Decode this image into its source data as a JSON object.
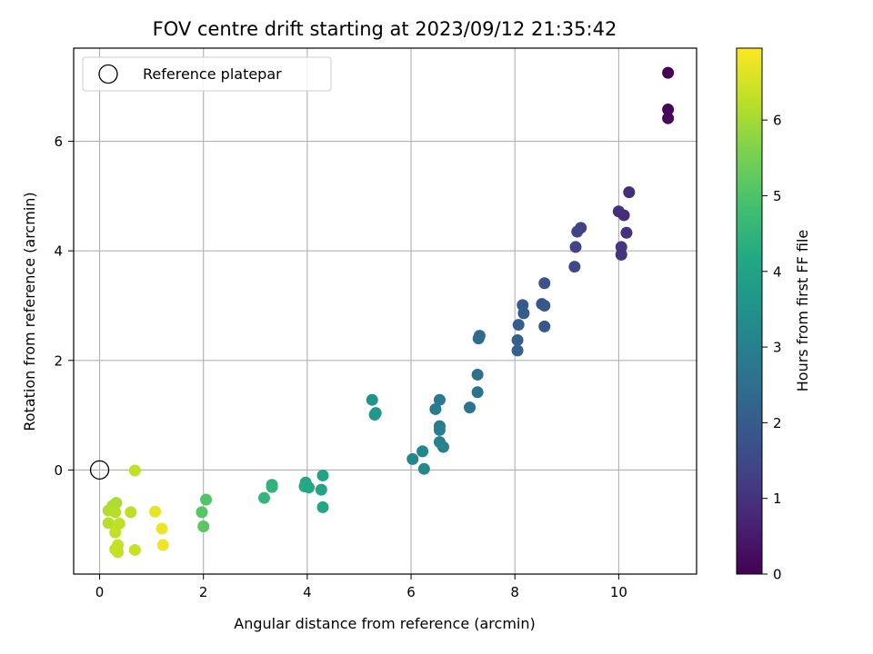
{
  "chart_data": {
    "type": "scatter",
    "title": "FOV centre drift starting at 2023/09/12 21:35:42",
    "xlabel": "Angular distance from reference (arcmin)",
    "ylabel": "Rotation from reference (arcmin)",
    "xlim": [
      -0.5,
      11.5
    ],
    "ylim": [
      -1.9,
      7.7
    ],
    "xticks": [
      0,
      2,
      4,
      6,
      8,
      10
    ],
    "yticks": [
      0,
      2,
      4,
      6
    ],
    "grid": true,
    "legend": {
      "placement": "top-left",
      "entries": [
        "Reference platepar"
      ]
    },
    "reference_point": {
      "x": 0,
      "y": 0,
      "label": "Reference platepar"
    },
    "colorbar": {
      "label": "Hours from first FF file",
      "range": [
        0,
        6.95
      ],
      "ticks": [
        0,
        1,
        2,
        3,
        4,
        5,
        6
      ],
      "colormap": "viridis"
    },
    "points": [
      {
        "x": 10.95,
        "y": 7.25,
        "c": 0.05
      },
      {
        "x": 10.95,
        "y": 6.58,
        "c": 0.1
      },
      {
        "x": 10.95,
        "y": 6.42,
        "c": 0.15
      },
      {
        "x": 10.2,
        "y": 5.07,
        "c": 0.85
      },
      {
        "x": 10.0,
        "y": 4.72,
        "c": 0.95
      },
      {
        "x": 10.1,
        "y": 4.65,
        "c": 0.9
      },
      {
        "x": 10.15,
        "y": 4.33,
        "c": 1.0
      },
      {
        "x": 10.05,
        "y": 4.07,
        "c": 1.1
      },
      {
        "x": 10.05,
        "y": 3.93,
        "c": 1.05
      },
      {
        "x": 9.27,
        "y": 4.42,
        "c": 1.35
      },
      {
        "x": 9.2,
        "y": 4.35,
        "c": 1.4
      },
      {
        "x": 9.17,
        "y": 4.07,
        "c": 1.45
      },
      {
        "x": 9.15,
        "y": 3.71,
        "c": 1.5
      },
      {
        "x": 8.57,
        "y": 3.41,
        "c": 1.75
      },
      {
        "x": 8.52,
        "y": 3.03,
        "c": 1.8
      },
      {
        "x": 8.57,
        "y": 3.0,
        "c": 1.85
      },
      {
        "x": 8.15,
        "y": 3.01,
        "c": 1.95
      },
      {
        "x": 8.17,
        "y": 2.86,
        "c": 2.0
      },
      {
        "x": 8.57,
        "y": 2.62,
        "c": 1.9
      },
      {
        "x": 8.07,
        "y": 2.65,
        "c": 2.05
      },
      {
        "x": 8.05,
        "y": 2.37,
        "c": 2.1
      },
      {
        "x": 8.05,
        "y": 2.18,
        "c": 2.15
      },
      {
        "x": 7.32,
        "y": 2.45,
        "c": 2.4
      },
      {
        "x": 7.3,
        "y": 2.4,
        "c": 2.45
      },
      {
        "x": 7.28,
        "y": 1.74,
        "c": 2.55
      },
      {
        "x": 7.28,
        "y": 1.42,
        "c": 2.6
      },
      {
        "x": 7.13,
        "y": 1.14,
        "c": 2.65
      },
      {
        "x": 6.55,
        "y": 1.28,
        "c": 2.8
      },
      {
        "x": 6.47,
        "y": 1.11,
        "c": 2.85
      },
      {
        "x": 6.55,
        "y": 0.8,
        "c": 2.9
      },
      {
        "x": 6.55,
        "y": 0.73,
        "c": 2.95
      },
      {
        "x": 6.55,
        "y": 0.51,
        "c": 3.0
      },
      {
        "x": 6.62,
        "y": 0.42,
        "c": 3.05
      },
      {
        "x": 6.22,
        "y": 0.34,
        "c": 3.15
      },
      {
        "x": 6.03,
        "y": 0.2,
        "c": 3.2
      },
      {
        "x": 6.25,
        "y": 0.02,
        "c": 3.25
      },
      {
        "x": 5.25,
        "y": 1.28,
        "c": 3.6
      },
      {
        "x": 5.3,
        "y": 1.01,
        "c": 3.65
      },
      {
        "x": 5.32,
        "y": 1.04,
        "c": 3.7
      },
      {
        "x": 4.3,
        "y": -0.1,
        "c": 4.0
      },
      {
        "x": 3.97,
        "y": -0.23,
        "c": 4.1
      },
      {
        "x": 4.27,
        "y": -0.36,
        "c": 4.05
      },
      {
        "x": 4.03,
        "y": -0.32,
        "c": 4.15
      },
      {
        "x": 3.95,
        "y": -0.3,
        "c": 4.2
      },
      {
        "x": 4.3,
        "y": -0.68,
        "c": 4.1
      },
      {
        "x": 3.32,
        "y": -0.27,
        "c": 4.45
      },
      {
        "x": 3.32,
        "y": -0.31,
        "c": 4.5
      },
      {
        "x": 3.17,
        "y": -0.51,
        "c": 4.55
      },
      {
        "x": 2.05,
        "y": -0.54,
        "c": 5.05
      },
      {
        "x": 1.97,
        "y": -0.77,
        "c": 5.1
      },
      {
        "x": 2.0,
        "y": -1.03,
        "c": 5.15
      },
      {
        "x": 0.68,
        "y": -0.01,
        "c": 6.3
      },
      {
        "x": 0.32,
        "y": -0.6,
        "c": 6.05
      },
      {
        "x": 0.25,
        "y": -0.65,
        "c": 6.1
      },
      {
        "x": 0.17,
        "y": -0.74,
        "c": 6.15
      },
      {
        "x": 0.3,
        "y": -0.77,
        "c": 6.2
      },
      {
        "x": 0.6,
        "y": -0.77,
        "c": 6.25
      },
      {
        "x": 0.17,
        "y": -0.97,
        "c": 6.2
      },
      {
        "x": 0.38,
        "y": -0.98,
        "c": 6.25
      },
      {
        "x": 0.3,
        "y": -1.14,
        "c": 6.3
      },
      {
        "x": 0.35,
        "y": -1.37,
        "c": 6.35
      },
      {
        "x": 0.3,
        "y": -1.45,
        "c": 6.3
      },
      {
        "x": 0.35,
        "y": -1.5,
        "c": 6.35
      },
      {
        "x": 0.68,
        "y": -1.46,
        "c": 6.4
      },
      {
        "x": 1.07,
        "y": -0.76,
        "c": 6.7
      },
      {
        "x": 1.2,
        "y": -1.07,
        "c": 6.75
      },
      {
        "x": 1.22,
        "y": -1.37,
        "c": 6.8
      }
    ]
  }
}
